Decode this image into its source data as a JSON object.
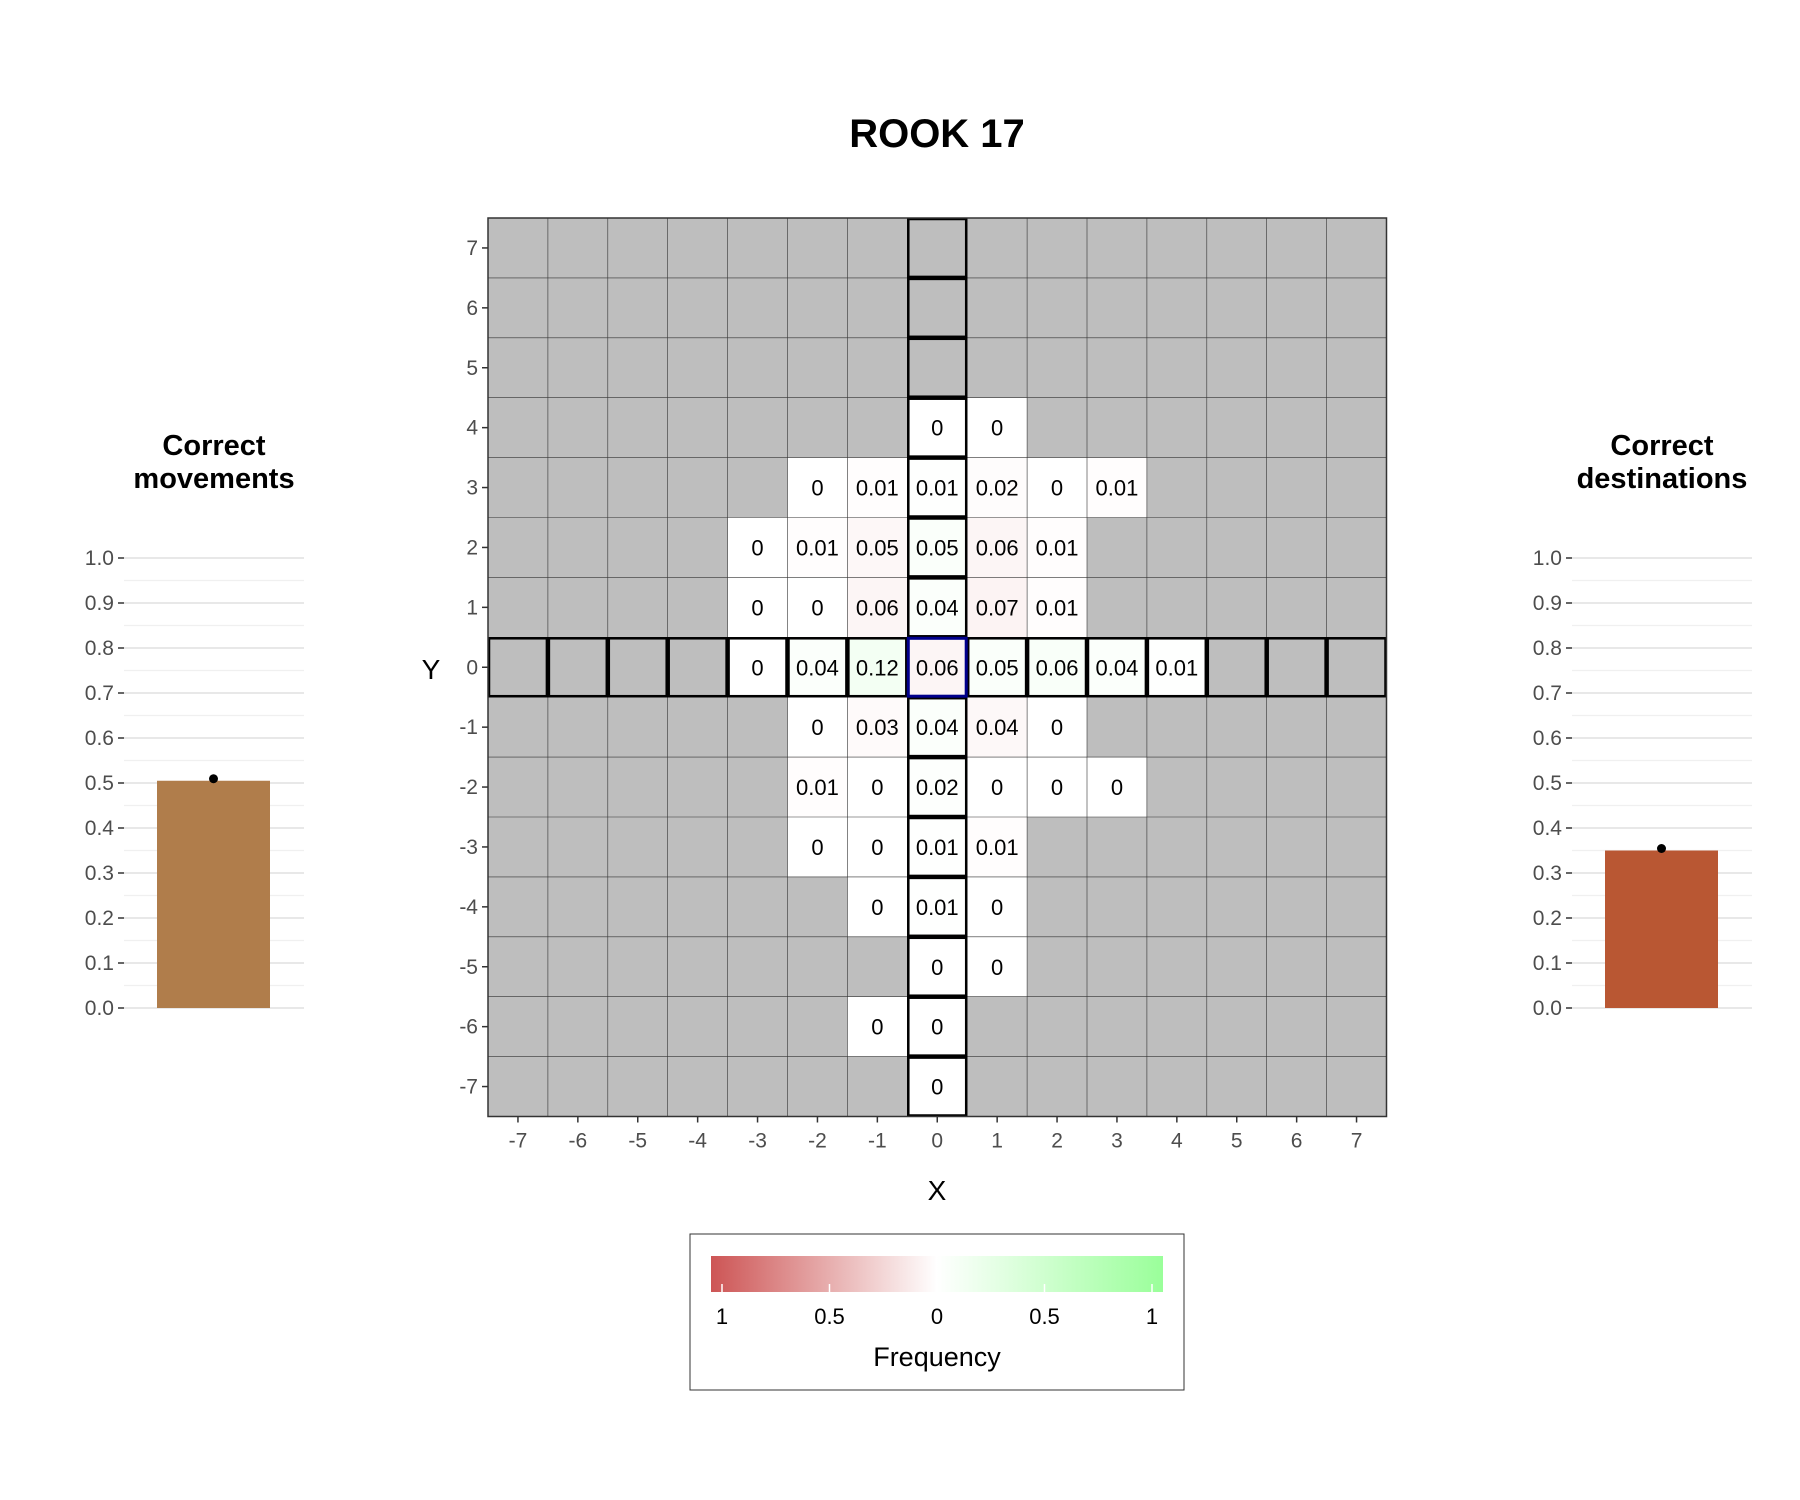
{
  "title": "ROOK 17",
  "colors": {
    "grid_bg": "#bebebe",
    "red": "#cd5555",
    "green": "#9aff9a",
    "highlight": "#00008b",
    "bar_movements": "#b07d4b",
    "bar_destinations": "#b95733"
  },
  "legend": {
    "title": "Frequency",
    "tick_labels": [
      "1",
      "0.5",
      "0",
      "0.5",
      "1"
    ]
  },
  "chart_data": [
    {
      "type": "heatmap",
      "title": "ROOK 17",
      "xlabel": "X",
      "ylabel": "Y",
      "xlim": [
        -7,
        7
      ],
      "ylim": [
        -7,
        7
      ],
      "x_ticks": [
        "-7",
        "-6",
        "-5",
        "-4",
        "-3",
        "-2",
        "-1",
        "0",
        "1",
        "2",
        "3",
        "4",
        "5",
        "6",
        "7"
      ],
      "y_ticks": [
        "7",
        "6",
        "5",
        "4",
        "3",
        "2",
        "1",
        "0",
        "-1",
        "-2",
        "-3",
        "-4",
        "-5",
        "-6",
        "-7"
      ],
      "origin_cell": [
        0,
        0
      ],
      "legal_rook_moves": "row y=0 and column x=0",
      "cells": [
        {
          "x": 0,
          "y": 4,
          "value": 0,
          "label": "0",
          "sign": "correct"
        },
        {
          "x": 1,
          "y": 4,
          "value": 0,
          "label": "0",
          "sign": "incorrect"
        },
        {
          "x": -2,
          "y": 3,
          "value": 0,
          "label": "0",
          "sign": "incorrect"
        },
        {
          "x": -1,
          "y": 3,
          "value": 0.01,
          "label": "0.01",
          "sign": "incorrect"
        },
        {
          "x": 0,
          "y": 3,
          "value": 0.01,
          "label": "0.01",
          "sign": "correct"
        },
        {
          "x": 1,
          "y": 3,
          "value": 0.02,
          "label": "0.02",
          "sign": "incorrect"
        },
        {
          "x": 2,
          "y": 3,
          "value": 0,
          "label": "0",
          "sign": "incorrect"
        },
        {
          "x": 3,
          "y": 3,
          "value": 0.01,
          "label": "0.01",
          "sign": "incorrect"
        },
        {
          "x": -3,
          "y": 2,
          "value": 0,
          "label": "0",
          "sign": "incorrect"
        },
        {
          "x": -2,
          "y": 2,
          "value": 0.01,
          "label": "0.01",
          "sign": "incorrect"
        },
        {
          "x": -1,
          "y": 2,
          "value": 0.05,
          "label": "0.05",
          "sign": "incorrect"
        },
        {
          "x": 0,
          "y": 2,
          "value": 0.05,
          "label": "0.05",
          "sign": "correct"
        },
        {
          "x": 1,
          "y": 2,
          "value": 0.06,
          "label": "0.06",
          "sign": "incorrect"
        },
        {
          "x": 2,
          "y": 2,
          "value": 0.01,
          "label": "0.01",
          "sign": "incorrect"
        },
        {
          "x": -3,
          "y": 1,
          "value": 0,
          "label": "0",
          "sign": "incorrect"
        },
        {
          "x": -2,
          "y": 1,
          "value": 0,
          "label": "0",
          "sign": "incorrect"
        },
        {
          "x": -1,
          "y": 1,
          "value": 0.06,
          "label": "0.06",
          "sign": "incorrect"
        },
        {
          "x": 0,
          "y": 1,
          "value": 0.04,
          "label": "0.04",
          "sign": "correct"
        },
        {
          "x": 1,
          "y": 1,
          "value": 0.07,
          "label": "0.07",
          "sign": "incorrect"
        },
        {
          "x": 2,
          "y": 1,
          "value": 0.01,
          "label": "0.01",
          "sign": "incorrect"
        },
        {
          "x": -3,
          "y": 0,
          "value": 0,
          "label": "0",
          "sign": "correct"
        },
        {
          "x": -2,
          "y": 0,
          "value": 0.04,
          "label": "0.04",
          "sign": "correct"
        },
        {
          "x": -1,
          "y": 0,
          "value": 0.12,
          "label": "0.12",
          "sign": "correct"
        },
        {
          "x": 0,
          "y": 0,
          "value": 0.06,
          "label": "0.06",
          "sign": "incorrect"
        },
        {
          "x": 1,
          "y": 0,
          "value": 0.05,
          "label": "0.05",
          "sign": "correct"
        },
        {
          "x": 2,
          "y": 0,
          "value": 0.06,
          "label": "0.06",
          "sign": "correct"
        },
        {
          "x": 3,
          "y": 0,
          "value": 0.04,
          "label": "0.04",
          "sign": "correct"
        },
        {
          "x": 4,
          "y": 0,
          "value": 0.01,
          "label": "0.01",
          "sign": "correct"
        },
        {
          "x": -2,
          "y": -1,
          "value": 0,
          "label": "0",
          "sign": "incorrect"
        },
        {
          "x": -1,
          "y": -1,
          "value": 0.03,
          "label": "0.03",
          "sign": "incorrect"
        },
        {
          "x": 0,
          "y": -1,
          "value": 0.04,
          "label": "0.04",
          "sign": "correct"
        },
        {
          "x": 1,
          "y": -1,
          "value": 0.04,
          "label": "0.04",
          "sign": "incorrect"
        },
        {
          "x": 2,
          "y": -1,
          "value": 0,
          "label": "0",
          "sign": "incorrect"
        },
        {
          "x": -2,
          "y": -2,
          "value": 0.01,
          "label": "0.01",
          "sign": "incorrect"
        },
        {
          "x": -1,
          "y": -2,
          "value": 0,
          "label": "0",
          "sign": "incorrect"
        },
        {
          "x": 0,
          "y": -2,
          "value": 0.02,
          "label": "0.02",
          "sign": "correct"
        },
        {
          "x": 1,
          "y": -2,
          "value": 0,
          "label": "0",
          "sign": "incorrect"
        },
        {
          "x": 2,
          "y": -2,
          "value": 0,
          "label": "0",
          "sign": "incorrect"
        },
        {
          "x": 3,
          "y": -2,
          "value": 0,
          "label": "0",
          "sign": "incorrect"
        },
        {
          "x": -2,
          "y": -3,
          "value": 0,
          "label": "0",
          "sign": "incorrect"
        },
        {
          "x": -1,
          "y": -3,
          "value": 0,
          "label": "0",
          "sign": "incorrect"
        },
        {
          "x": 0,
          "y": -3,
          "value": 0.01,
          "label": "0.01",
          "sign": "correct"
        },
        {
          "x": 1,
          "y": -3,
          "value": 0.01,
          "label": "0.01",
          "sign": "incorrect"
        },
        {
          "x": -1,
          "y": -4,
          "value": 0,
          "label": "0",
          "sign": "incorrect"
        },
        {
          "x": 0,
          "y": -4,
          "value": 0.01,
          "label": "0.01",
          "sign": "correct"
        },
        {
          "x": 1,
          "y": -4,
          "value": 0,
          "label": "0",
          "sign": "incorrect"
        },
        {
          "x": 0,
          "y": -5,
          "value": 0,
          "label": "0",
          "sign": "correct"
        },
        {
          "x": 1,
          "y": -5,
          "value": 0,
          "label": "0",
          "sign": "incorrect"
        },
        {
          "x": -1,
          "y": -6,
          "value": 0,
          "label": "0",
          "sign": "incorrect"
        },
        {
          "x": 0,
          "y": -6,
          "value": 0,
          "label": "0",
          "sign": "correct"
        },
        {
          "x": 0,
          "y": -7,
          "value": 0,
          "label": "0",
          "sign": "correct"
        }
      ]
    },
    {
      "type": "bar",
      "title": "Correct movements",
      "title_lines": [
        "Correct",
        "movements"
      ],
      "categories": [
        ""
      ],
      "values": [
        0.505
      ],
      "ylim": [
        0,
        1
      ],
      "y_ticks": [
        "0.0",
        "0.1",
        "0.2",
        "0.3",
        "0.4",
        "0.5",
        "0.6",
        "0.7",
        "0.8",
        "0.9",
        "1.0"
      ]
    },
    {
      "type": "bar",
      "title": "Correct destinations",
      "title_lines": [
        "Correct",
        "destinations"
      ],
      "categories": [
        ""
      ],
      "values": [
        0.35
      ],
      "ylim": [
        0,
        1
      ],
      "y_ticks": [
        "0.0",
        "0.1",
        "0.2",
        "0.3",
        "0.4",
        "0.5",
        "0.6",
        "0.7",
        "0.8",
        "0.9",
        "1.0"
      ]
    }
  ]
}
